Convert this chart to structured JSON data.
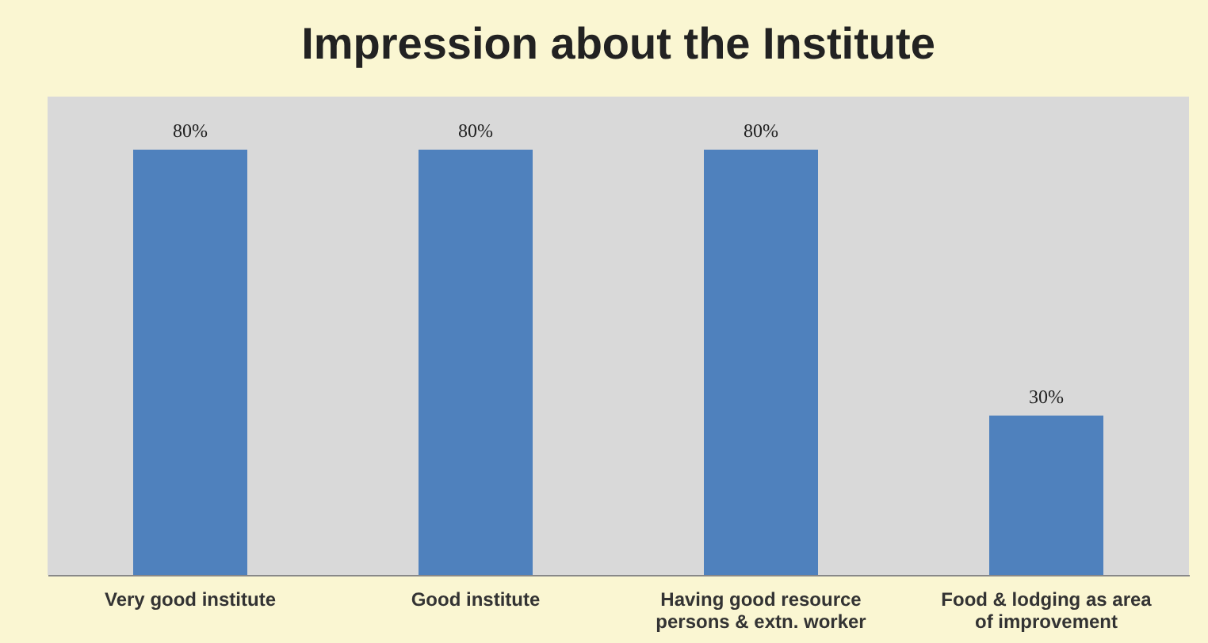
{
  "chart_data": {
    "type": "bar",
    "title": "Impression about the Institute",
    "categories": [
      "Very good institute",
      "Good institute",
      "Having good resource persons & extn. worker",
      "Food & lodging as area of improvement"
    ],
    "values": [
      80,
      80,
      80,
      30
    ],
    "value_labels": [
      "80%",
      "80%",
      "80%",
      "30%"
    ],
    "color": "#4f81bd",
    "ylim": [
      0,
      90
    ],
    "tick_labels": "x",
    "grid": false
  }
}
